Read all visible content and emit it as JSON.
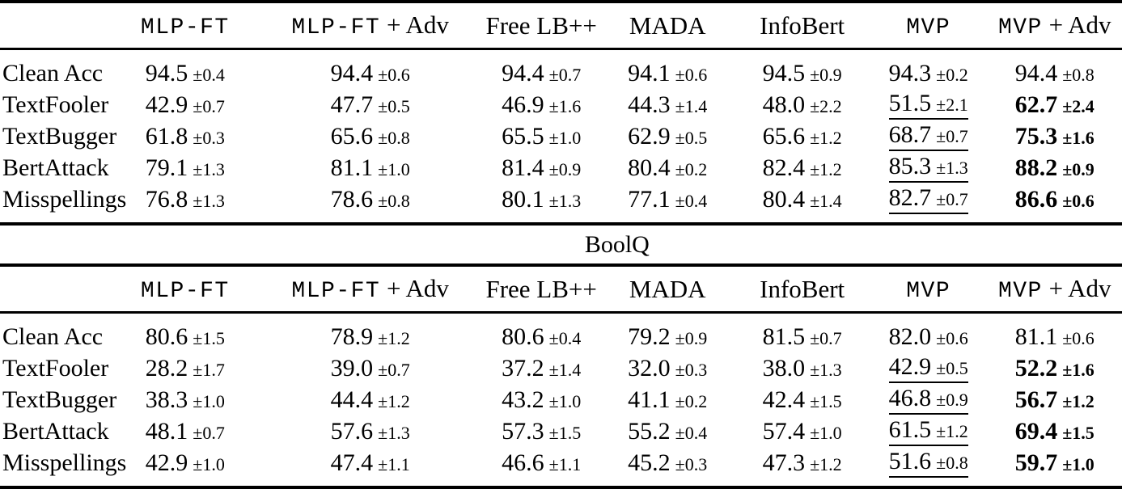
{
  "page": {
    "background": "#ffffff",
    "text_color": "#000000",
    "rule_color": "#000000"
  },
  "column_headers": [
    {
      "segments": [
        {
          "text": "MLP-FT",
          "font": "mono"
        }
      ]
    },
    {
      "segments": [
        {
          "text": "MLP-FT",
          "font": "mono"
        },
        {
          "text": " + Adv",
          "font": "serif"
        }
      ]
    },
    {
      "segments": [
        {
          "text": "Free LB++",
          "font": "serif"
        }
      ]
    },
    {
      "segments": [
        {
          "text": "MADA",
          "font": "serif"
        }
      ]
    },
    {
      "segments": [
        {
          "text": "InfoBert",
          "font": "serif"
        }
      ]
    },
    {
      "segments": [
        {
          "text": "MVP",
          "font": "mono"
        }
      ]
    },
    {
      "segments": [
        {
          "text": "MVP",
          "font": "mono"
        },
        {
          "text": " + Adv",
          "font": "serif"
        }
      ]
    }
  ],
  "tables": [
    {
      "title": "",
      "rows": [
        {
          "label": "Clean Acc",
          "cells": [
            {
              "v": "94.5",
              "e": "±0.4",
              "s": "plain"
            },
            {
              "v": "94.4",
              "e": "±0.6",
              "s": "plain"
            },
            {
              "v": "94.4",
              "e": "±0.7",
              "s": "plain"
            },
            {
              "v": "94.1",
              "e": "±0.6",
              "s": "plain"
            },
            {
              "v": "94.5",
              "e": "±0.9",
              "s": "plain"
            },
            {
              "v": "94.3",
              "e": "±0.2",
              "s": "plain"
            },
            {
              "v": "94.4",
              "e": "±0.8",
              "s": "plain"
            }
          ]
        },
        {
          "label": "TextFooler",
          "cells": [
            {
              "v": "42.9",
              "e": "±0.7",
              "s": "plain"
            },
            {
              "v": "47.7",
              "e": "±0.5",
              "s": "plain"
            },
            {
              "v": "46.9",
              "e": "±1.6",
              "s": "plain"
            },
            {
              "v": "44.3",
              "e": "±1.4",
              "s": "plain"
            },
            {
              "v": "48.0",
              "e": "±2.2",
              "s": "plain"
            },
            {
              "v": "51.5",
              "e": "±2.1",
              "s": "underline"
            },
            {
              "v": "62.7",
              "e": "±2.4",
              "s": "bold"
            }
          ]
        },
        {
          "label": "TextBugger",
          "cells": [
            {
              "v": "61.8",
              "e": "±0.3",
              "s": "plain"
            },
            {
              "v": "65.6",
              "e": "±0.8",
              "s": "plain"
            },
            {
              "v": "65.5",
              "e": "±1.0",
              "s": "plain"
            },
            {
              "v": "62.9",
              "e": "±0.5",
              "s": "plain"
            },
            {
              "v": "65.6",
              "e": "±1.2",
              "s": "plain"
            },
            {
              "v": "68.7",
              "e": "±0.7",
              "s": "underline"
            },
            {
              "v": "75.3",
              "e": "±1.6",
              "s": "bold"
            }
          ]
        },
        {
          "label": "BertAttack",
          "cells": [
            {
              "v": "79.1",
              "e": "±1.3",
              "s": "plain"
            },
            {
              "v": "81.1",
              "e": "±1.0",
              "s": "plain"
            },
            {
              "v": "81.4",
              "e": "±0.9",
              "s": "plain"
            },
            {
              "v": "80.4",
              "e": "±0.2",
              "s": "plain"
            },
            {
              "v": "82.4",
              "e": "±1.2",
              "s": "plain"
            },
            {
              "v": "85.3",
              "e": "±1.3",
              "s": "underline"
            },
            {
              "v": "88.2",
              "e": "±0.9",
              "s": "bold"
            }
          ]
        },
        {
          "label": "Misspellings",
          "cells": [
            {
              "v": "76.8",
              "e": "±1.3",
              "s": "plain"
            },
            {
              "v": "78.6",
              "e": "±0.8",
              "s": "plain"
            },
            {
              "v": "80.1",
              "e": "±1.3",
              "s": "plain"
            },
            {
              "v": "77.1",
              "e": "±0.4",
              "s": "plain"
            },
            {
              "v": "80.4",
              "e": "±1.4",
              "s": "plain"
            },
            {
              "v": "82.7",
              "e": "±0.7",
              "s": "underline"
            },
            {
              "v": "86.6",
              "e": "±0.6",
              "s": "bold"
            }
          ]
        }
      ]
    },
    {
      "title": "BoolQ",
      "rows": [
        {
          "label": "Clean Acc",
          "cells": [
            {
              "v": "80.6",
              "e": "±1.5",
              "s": "plain"
            },
            {
              "v": "78.9",
              "e": "±1.2",
              "s": "plain"
            },
            {
              "v": "80.6",
              "e": "±0.4",
              "s": "plain"
            },
            {
              "v": "79.2",
              "e": "±0.9",
              "s": "plain"
            },
            {
              "v": "81.5",
              "e": "±0.7",
              "s": "plain"
            },
            {
              "v": "82.0",
              "e": "±0.6",
              "s": "plain"
            },
            {
              "v": "81.1",
              "e": "±0.6",
              "s": "plain"
            }
          ]
        },
        {
          "label": "TextFooler",
          "cells": [
            {
              "v": "28.2",
              "e": "±1.7",
              "s": "plain"
            },
            {
              "v": "39.0",
              "e": "±0.7",
              "s": "plain"
            },
            {
              "v": "37.2",
              "e": "±1.4",
              "s": "plain"
            },
            {
              "v": "32.0",
              "e": "±0.3",
              "s": "plain"
            },
            {
              "v": "38.0",
              "e": "±1.3",
              "s": "plain"
            },
            {
              "v": "42.9",
              "e": "±0.5",
              "s": "underline"
            },
            {
              "v": "52.2",
              "e": "±1.6",
              "s": "bold"
            }
          ]
        },
        {
          "label": "TextBugger",
          "cells": [
            {
              "v": "38.3",
              "e": "±1.0",
              "s": "plain"
            },
            {
              "v": "44.4",
              "e": "±1.2",
              "s": "plain"
            },
            {
              "v": "43.2",
              "e": "±1.0",
              "s": "plain"
            },
            {
              "v": "41.1",
              "e": "±0.2",
              "s": "plain"
            },
            {
              "v": "42.4",
              "e": "±1.5",
              "s": "plain"
            },
            {
              "v": "46.8",
              "e": "±0.9",
              "s": "underline"
            },
            {
              "v": "56.7",
              "e": "±1.2",
              "s": "bold"
            }
          ]
        },
        {
          "label": "BertAttack",
          "cells": [
            {
              "v": "48.1",
              "e": "±0.7",
              "s": "plain"
            },
            {
              "v": "57.6",
              "e": "±1.3",
              "s": "plain"
            },
            {
              "v": "57.3",
              "e": "±1.5",
              "s": "plain"
            },
            {
              "v": "55.2",
              "e": "±0.4",
              "s": "plain"
            },
            {
              "v": "57.4",
              "e": "±1.0",
              "s": "plain"
            },
            {
              "v": "61.5",
              "e": "±1.2",
              "s": "underline"
            },
            {
              "v": "69.4",
              "e": "±1.5",
              "s": "bold"
            }
          ]
        },
        {
          "label": "Misspellings",
          "cells": [
            {
              "v": "42.9",
              "e": "±1.0",
              "s": "plain"
            },
            {
              "v": "47.4",
              "e": "±1.1",
              "s": "plain"
            },
            {
              "v": "46.6",
              "e": "±1.1",
              "s": "plain"
            },
            {
              "v": "45.2",
              "e": "±0.3",
              "s": "plain"
            },
            {
              "v": "47.3",
              "e": "±1.2",
              "s": "plain"
            },
            {
              "v": "51.6",
              "e": "±0.8",
              "s": "underline"
            },
            {
              "v": "59.7",
              "e": "±1.0",
              "s": "bold"
            }
          ]
        }
      ]
    }
  ]
}
